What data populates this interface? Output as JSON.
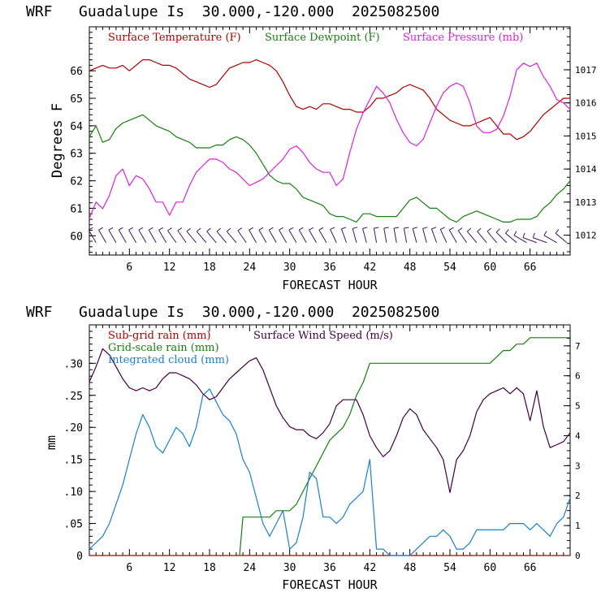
{
  "colors": {
    "temperature": "#b00000",
    "dewpoint": "#1a7d12",
    "pressure": "#e020e0",
    "wind_barbs": "#3c1a5a",
    "subgrid_rain": "#b00000",
    "wind_speed": "#400040",
    "gridscale_rain": "#1a7d12",
    "cloud": "#1a80d0"
  },
  "chart_data": [
    {
      "type": "line",
      "title": "WRF   Guadalupe Is  30.000,-120.000  2025082500",
      "xlabel": "FORECAST HOUR",
      "ylabel": "Degrees F",
      "xlim": [
        0,
        72
      ],
      "ylim": [
        59.3,
        67.6
      ],
      "y2lim": [
        1011.4,
        1018.3
      ],
      "xticks": [
        "6",
        "12",
        "18",
        "24",
        "30",
        "36",
        "42",
        "48",
        "54",
        "60",
        "66"
      ],
      "yticks": [
        "60",
        "61",
        "62",
        "63",
        "64",
        "65",
        "66"
      ],
      "y2ticks": [
        "1012",
        "1013",
        "1014",
        "1015",
        "1016",
        "1017"
      ],
      "series": [
        {
          "name": "Surface Temperature (F)",
          "axis": "left",
          "x": [
            0,
            1,
            2,
            3,
            4,
            5,
            6,
            7,
            8,
            9,
            10,
            11,
            12,
            13,
            14,
            15,
            16,
            17,
            18,
            19,
            20,
            21,
            22,
            23,
            24,
            25,
            26,
            27,
            28,
            29,
            30,
            31,
            32,
            33,
            34,
            35,
            36,
            37,
            38,
            39,
            40,
            41,
            42,
            43,
            44,
            45,
            46,
            47,
            48,
            49,
            50,
            51,
            52,
            53,
            54,
            55,
            56,
            57,
            58,
            59,
            60,
            61,
            62,
            63,
            64,
            65,
            66,
            67,
            68,
            69,
            70,
            71,
            72
          ],
          "values": [
            66.0,
            66.1,
            66.2,
            66.1,
            66.1,
            66.2,
            66.0,
            66.2,
            66.4,
            66.4,
            66.3,
            66.2,
            66.2,
            66.1,
            65.9,
            65.7,
            65.6,
            65.5,
            65.4,
            65.5,
            65.8,
            66.1,
            66.2,
            66.3,
            66.3,
            66.4,
            66.3,
            66.2,
            66.0,
            65.6,
            65.1,
            64.7,
            64.6,
            64.7,
            64.6,
            64.8,
            64.8,
            64.7,
            64.6,
            64.6,
            64.5,
            64.5,
            64.7,
            65.0,
            65.0,
            65.1,
            65.2,
            65.4,
            65.5,
            65.4,
            65.3,
            65.0,
            64.6,
            64.4,
            64.2,
            64.1,
            64.0,
            64.0,
            64.1,
            64.2,
            64.3,
            64.0,
            63.7,
            63.7,
            63.5,
            63.6,
            63.8,
            64.1,
            64.4,
            64.6,
            64.8,
            65.0,
            65.0
          ]
        },
        {
          "name": "Surface Dewpoint (F)",
          "axis": "left",
          "x": [
            0,
            1,
            2,
            3,
            4,
            5,
            6,
            7,
            8,
            9,
            10,
            11,
            12,
            13,
            14,
            15,
            16,
            17,
            18,
            19,
            20,
            21,
            22,
            23,
            24,
            25,
            26,
            27,
            28,
            29,
            30,
            31,
            32,
            33,
            34,
            35,
            36,
            37,
            38,
            39,
            40,
            41,
            42,
            43,
            44,
            45,
            46,
            47,
            48,
            49,
            50,
            51,
            52,
            53,
            54,
            55,
            56,
            57,
            58,
            59,
            60,
            61,
            62,
            63,
            64,
            65,
            66,
            67,
            68,
            69,
            70,
            71,
            72
          ],
          "values": [
            63.6,
            64.0,
            63.4,
            63.5,
            63.9,
            64.1,
            64.2,
            64.3,
            64.4,
            64.2,
            64.0,
            63.9,
            63.8,
            63.6,
            63.5,
            63.4,
            63.2,
            63.2,
            63.2,
            63.3,
            63.3,
            63.5,
            63.6,
            63.5,
            63.3,
            63.0,
            62.6,
            62.2,
            62.0,
            61.9,
            61.9,
            61.7,
            61.4,
            61.3,
            61.2,
            61.1,
            60.8,
            60.7,
            60.7,
            60.6,
            60.5,
            60.8,
            60.8,
            60.7,
            60.7,
            60.7,
            60.7,
            61.0,
            61.3,
            61.4,
            61.2,
            61.0,
            61.0,
            60.8,
            60.6,
            60.5,
            60.7,
            60.8,
            60.9,
            60.8,
            60.7,
            60.6,
            60.5,
            60.5,
            60.6,
            60.6,
            60.6,
            60.7,
            61.0,
            61.2,
            61.5,
            61.7,
            62.0
          ]
        },
        {
          "name": "Surface Pressure (mb)",
          "axis": "right",
          "x": [
            0,
            1,
            2,
            3,
            4,
            5,
            6,
            7,
            8,
            9,
            10,
            11,
            12,
            13,
            14,
            15,
            16,
            17,
            18,
            19,
            20,
            21,
            22,
            23,
            24,
            25,
            26,
            27,
            28,
            29,
            30,
            31,
            32,
            33,
            34,
            35,
            36,
            37,
            38,
            39,
            40,
            41,
            42,
            43,
            44,
            45,
            46,
            47,
            48,
            49,
            50,
            51,
            52,
            53,
            54,
            55,
            56,
            57,
            58,
            59,
            60,
            61,
            62,
            63,
            64,
            65,
            66,
            67,
            68,
            69,
            70,
            71,
            72
          ],
          "values": [
            1012.5,
            1013.0,
            1012.8,
            1013.2,
            1013.8,
            1014.0,
            1013.5,
            1013.8,
            1013.7,
            1013.4,
            1013.0,
            1013.0,
            1012.6,
            1013.0,
            1013.0,
            1013.5,
            1013.9,
            1014.1,
            1014.3,
            1014.3,
            1014.2,
            1014.0,
            1013.9,
            1013.7,
            1013.5,
            1013.6,
            1013.7,
            1013.9,
            1014.1,
            1014.3,
            1014.6,
            1014.7,
            1014.5,
            1014.2,
            1014.0,
            1013.9,
            1013.9,
            1013.5,
            1013.7,
            1014.5,
            1015.2,
            1015.7,
            1016.1,
            1016.5,
            1016.3,
            1016.0,
            1015.5,
            1015.1,
            1014.8,
            1014.7,
            1014.9,
            1015.4,
            1015.9,
            1016.3,
            1016.5,
            1016.6,
            1016.5,
            1016.0,
            1015.3,
            1015.1,
            1015.1,
            1015.2,
            1015.6,
            1016.2,
            1017.0,
            1017.2,
            1017.1,
            1017.2,
            1016.8,
            1016.5,
            1016.1,
            1016.0,
            1015.8
          ]
        }
      ],
      "wind_barbs": {
        "x": [
          1,
          2.5,
          4,
          5.5,
          7,
          8.5,
          10,
          11.5,
          13,
          14.5,
          16,
          17.5,
          19,
          20.5,
          22,
          23.5,
          25,
          26.5,
          28,
          29.5,
          31,
          32.5,
          34,
          35.5,
          37,
          38.5,
          40,
          41.5,
          43,
          44.5,
          46,
          47.5,
          49,
          50.5,
          52,
          53.5,
          55,
          56.5,
          58,
          59.5,
          61,
          62.5,
          64,
          65.5,
          67,
          68.5,
          70,
          71.5
        ],
        "direction_deg": [
          330,
          330,
          330,
          330,
          330,
          330,
          330,
          330,
          325,
          325,
          320,
          320,
          320,
          320,
          320,
          325,
          330,
          330,
          330,
          330,
          330,
          330,
          330,
          330,
          335,
          340,
          345,
          345,
          350,
          350,
          350,
          350,
          345,
          345,
          340,
          335,
          330,
          325,
          320,
          320,
          320,
          315,
          310,
          300,
          290,
          290,
          300,
          310
        ],
        "speed": [
          6,
          6,
          6,
          6,
          6,
          6,
          6,
          6,
          6,
          6,
          6,
          6,
          6,
          6,
          6,
          6,
          6,
          6,
          6,
          6,
          6,
          6,
          6,
          6,
          6,
          6,
          6,
          6,
          6,
          6,
          6,
          6,
          6,
          6,
          6,
          6,
          6,
          6,
          6,
          6,
          6,
          6,
          6,
          6,
          6,
          6,
          6,
          6
        ]
      }
    },
    {
      "type": "line",
      "title": "WRF   Guadalupe Is  30.000,-120.000  2025082500",
      "xlabel": "FORECAST HOUR",
      "ylabel": "mm",
      "xlim": [
        0,
        72
      ],
      "ylim": [
        0,
        0.36
      ],
      "y2lim": [
        0,
        7.7
      ],
      "xticks": [
        "6",
        "12",
        "18",
        "24",
        "30",
        "36",
        "42",
        "48",
        "54",
        "60",
        "66"
      ],
      "yticks": [
        "0",
        ".05",
        ".10",
        ".15",
        ".20",
        ".25",
        ".30"
      ],
      "y2ticks": [
        "0",
        "1",
        "2",
        "3",
        "4",
        "5",
        "6",
        "7"
      ],
      "series": [
        {
          "name": "Sub-grid rain (mm)",
          "axis": "left",
          "x": [
            0,
            72
          ],
          "values": [
            0,
            0
          ]
        },
        {
          "name": "Grid-scale rain (mm)",
          "axis": "left",
          "x": [
            22.5,
            23,
            25,
            27,
            28,
            29,
            30,
            31,
            32,
            33,
            34,
            35,
            36,
            37,
            38,
            39,
            40,
            41,
            42,
            48,
            54,
            59,
            60,
            61,
            62,
            63,
            64,
            65,
            66,
            67,
            68,
            69,
            70,
            71,
            72
          ],
          "values": [
            0,
            0.06,
            0.06,
            0.06,
            0.07,
            0.07,
            0.07,
            0.08,
            0.1,
            0.12,
            0.14,
            0.16,
            0.18,
            0.19,
            0.2,
            0.22,
            0.25,
            0.27,
            0.3,
            0.3,
            0.3,
            0.3,
            0.3,
            0.31,
            0.32,
            0.32,
            0.33,
            0.33,
            0.34,
            0.34,
            0.34,
            0.34,
            0.34,
            0.34,
            0.34
          ]
        },
        {
          "name": "Integrated cloud (mm)",
          "axis": "left",
          "x": [
            0,
            1,
            2,
            3,
            4,
            5,
            6,
            7,
            8,
            9,
            10,
            11,
            12,
            13,
            14,
            15,
            16,
            17,
            18,
            19,
            20,
            21,
            22,
            23,
            24,
            25,
            26,
            27,
            28,
            29,
            30,
            31,
            32,
            33,
            34,
            35,
            36,
            37,
            38,
            39,
            40,
            41,
            42,
            43,
            44,
            45,
            46,
            47,
            48,
            49,
            50,
            51,
            52,
            53,
            54,
            55,
            56,
            57,
            58,
            59,
            60,
            61,
            62,
            63,
            64,
            65,
            66,
            67,
            68,
            69,
            70,
            71,
            72
          ],
          "values": [
            0.01,
            0.02,
            0.03,
            0.05,
            0.08,
            0.11,
            0.15,
            0.19,
            0.22,
            0.2,
            0.17,
            0.16,
            0.18,
            0.2,
            0.19,
            0.17,
            0.2,
            0.25,
            0.26,
            0.24,
            0.22,
            0.21,
            0.19,
            0.15,
            0.13,
            0.09,
            0.05,
            0.03,
            0.05,
            0.07,
            0.01,
            0.02,
            0.06,
            0.13,
            0.12,
            0.06,
            0.06,
            0.05,
            0.06,
            0.08,
            0.09,
            0.1,
            0.15,
            0.01,
            0.01,
            0.0,
            0.0,
            0.0,
            0.0,
            0.01,
            0.02,
            0.03,
            0.03,
            0.04,
            0.03,
            0.01,
            0.01,
            0.02,
            0.04,
            0.04,
            0.04,
            0.04,
            0.04,
            0.05,
            0.05,
            0.05,
            0.04,
            0.05,
            0.04,
            0.03,
            0.05,
            0.06,
            0.09
          ]
        },
        {
          "name": "Surface Wind Speed (m/s)",
          "axis": "right",
          "x": [
            0,
            1,
            2,
            3,
            4,
            5,
            6,
            7,
            8,
            9,
            10,
            11,
            12,
            13,
            14,
            15,
            16,
            17,
            18,
            19,
            20,
            21,
            22,
            23,
            24,
            25,
            26,
            27,
            28,
            29,
            30,
            31,
            32,
            33,
            34,
            35,
            36,
            37,
            38,
            39,
            40,
            41,
            42,
            43,
            44,
            45,
            46,
            47,
            48,
            49,
            50,
            51,
            52,
            53,
            54,
            55,
            56,
            57,
            58,
            59,
            60,
            61,
            62,
            63,
            64,
            65,
            66,
            67,
            68,
            69,
            70,
            71,
            72
          ],
          "values": [
            5.8,
            6.3,
            6.9,
            6.7,
            6.3,
            5.9,
            5.6,
            5.5,
            5.6,
            5.5,
            5.6,
            5.9,
            6.1,
            6.1,
            6.0,
            5.9,
            5.7,
            5.4,
            5.2,
            5.3,
            5.6,
            5.9,
            6.1,
            6.3,
            6.5,
            6.6,
            6.2,
            5.6,
            5.0,
            4.6,
            4.3,
            4.2,
            4.2,
            4.0,
            3.9,
            4.1,
            4.4,
            5.0,
            5.2,
            5.2,
            5.2,
            4.7,
            4.0,
            3.6,
            3.3,
            3.5,
            4.0,
            4.6,
            4.9,
            4.7,
            4.2,
            3.9,
            3.6,
            3.2,
            2.1,
            3.2,
            3.5,
            4.0,
            4.8,
            5.2,
            5.4,
            5.5,
            5.6,
            5.4,
            5.6,
            5.4,
            4.5,
            5.5,
            4.3,
            3.6,
            3.7,
            3.8,
            4.1
          ]
        }
      ]
    }
  ]
}
